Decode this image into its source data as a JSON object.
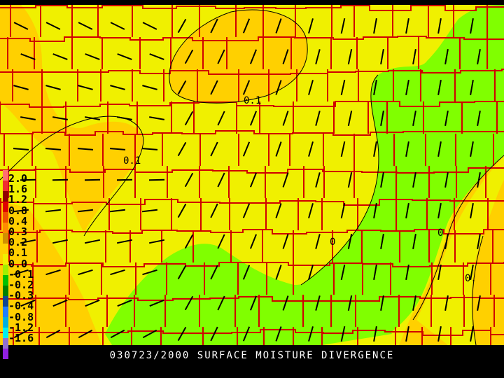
{
  "caption": "030723/2000 SURFACE MOISTURE DIVERGENCE",
  "legend": {
    "labels": [
      "2.0",
      "1.6",
      "1.2",
      "0.8",
      "0.4",
      "0.3",
      "0.2",
      "0.1",
      "0.0",
      "-0.1",
      "-0.2",
      "-0.3",
      "-0.4",
      "-0.8",
      "-1.2",
      "-1.6"
    ],
    "colors": [
      "#ff7070",
      "#f03030",
      "#900000",
      "#e00000",
      "#f05000",
      "#ff8c00",
      "#d09000",
      "#ffd000",
      "#f0f000",
      "#a0f000",
      "#00c000",
      "#008000",
      "#104890",
      "#2080ff",
      "#00b0e0",
      "#00f0f0",
      "#9070d0",
      "#9020e0"
    ]
  },
  "contour_labels": [
    "0.1",
    "0.1",
    "0",
    "0",
    "0."
  ],
  "colors": {
    "county_lines": "#d00000",
    "base": "#f0f000",
    "positive": "#ffd000",
    "negative": "#80ff00",
    "barbs": "#000000"
  }
}
